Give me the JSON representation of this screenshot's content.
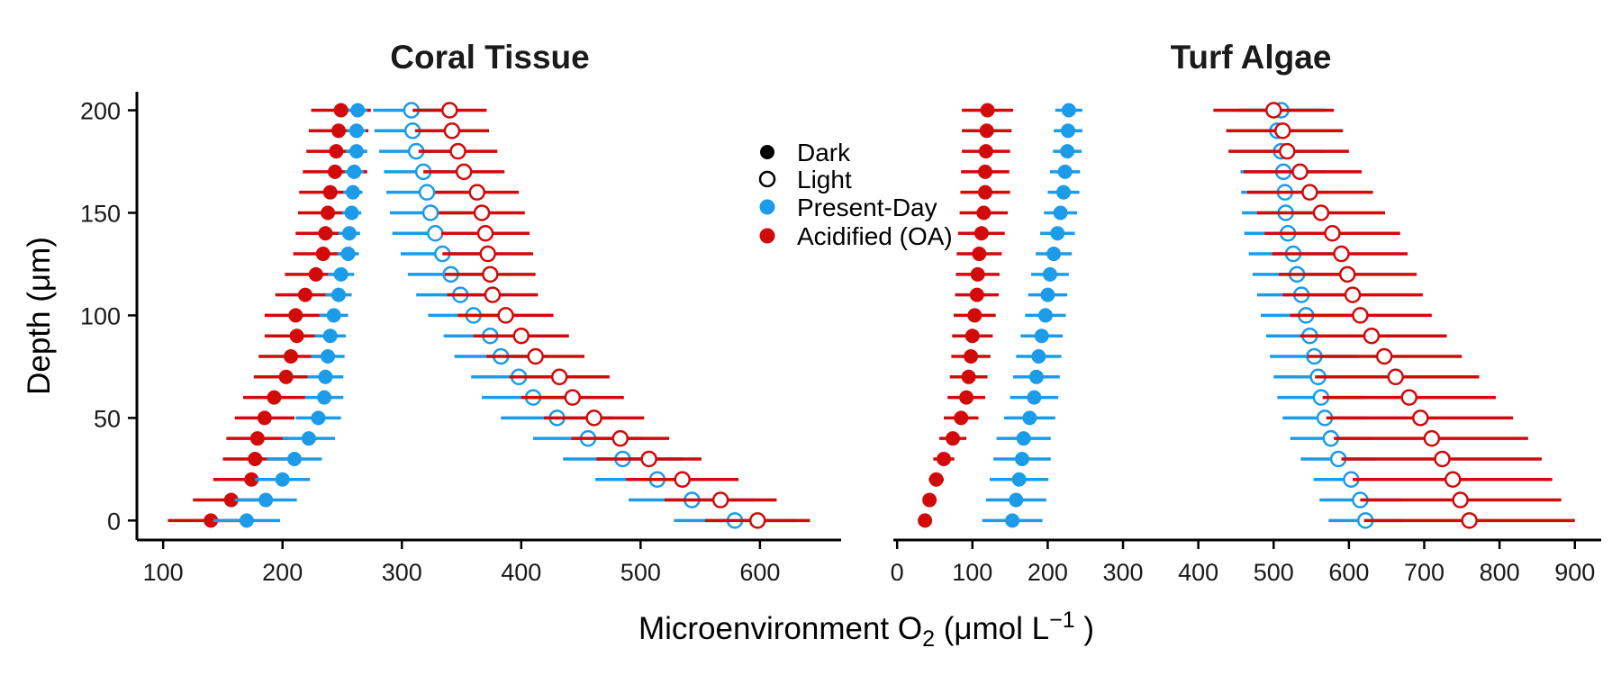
{
  "colors": {
    "present_day": "#1b9be8",
    "acidified": "#d10a0a",
    "axis": "#000000"
  },
  "axes": {
    "y_title": "Depth (μm)",
    "x_title_main": "Microenvironment O",
    "x_title_sub": "2",
    "x_title_unit": " (μmol L",
    "x_title_sup": "−1",
    "x_title_close": " )"
  },
  "legend": {
    "items": [
      {
        "label": "Dark",
        "marker": "filled-circle",
        "color": "#000000"
      },
      {
        "label": "Light",
        "marker": "open-circle",
        "color": "#000000"
      },
      {
        "label": "Present-Day",
        "marker": "filled-circle",
        "color": "#1b9be8"
      },
      {
        "label": "Acidified (OA)",
        "marker": "filled-circle",
        "color": "#d10a0a"
      }
    ]
  },
  "chart_data": [
    {
      "type": "scatter",
      "title": "Coral Tissue",
      "xlabel": "Microenvironment O2 (μmol L−1 )",
      "ylabel": "Depth (μm)",
      "xlim": [
        78,
        668
      ],
      "ylim": [
        -9.5,
        209
      ],
      "xticks": [
        100,
        200,
        300,
        400,
        500,
        600
      ],
      "yticks": [
        0,
        50,
        100,
        150,
        200
      ],
      "depths": [
        0,
        10,
        20,
        30,
        40,
        50,
        60,
        70,
        80,
        90,
        100,
        110,
        120,
        130,
        140,
        150,
        160,
        170,
        180,
        190,
        200
      ],
      "series": [
        {
          "name": "Acidified (OA)",
          "condition": "Dark",
          "mean": [
            140,
            157,
            174,
            177,
            179,
            185,
            193,
            203,
            207,
            212,
            211,
            219,
            228,
            234,
            236,
            238,
            240,
            244,
            245,
            247,
            249
          ],
          "lower": [
            104,
            125,
            142,
            150,
            153,
            160,
            167,
            176,
            180,
            185,
            185,
            194,
            202,
            209,
            211,
            213,
            214,
            217,
            220,
            222,
            224
          ],
          "upper": [
            176,
            189,
            206,
            204,
            205,
            210,
            219,
            230,
            234,
            239,
            237,
            244,
            254,
            259,
            261,
            263,
            266,
            271,
            270,
            272,
            274
          ]
        },
        {
          "name": "Present-Day",
          "condition": "Dark",
          "mean": [
            170,
            186,
            200,
            210,
            222,
            230,
            235,
            236,
            238,
            240,
            243,
            247,
            249,
            255,
            256,
            258,
            259,
            260,
            262,
            262,
            263
          ],
          "lower": [
            142,
            160,
            177,
            187,
            200,
            211,
            219,
            221,
            224,
            227,
            231,
            236,
            238,
            246,
            247,
            250,
            251,
            252,
            253,
            254,
            255
          ],
          "upper": [
            198,
            212,
            223,
            233,
            244,
            249,
            251,
            251,
            252,
            253,
            255,
            258,
            260,
            264,
            265,
            266,
            267,
            268,
            271,
            270,
            271
          ]
        },
        {
          "name": "Present-Day",
          "condition": "Light",
          "mean": [
            579,
            543,
            514,
            485,
            456,
            430,
            410,
            398,
            383,
            374,
            360,
            349,
            341,
            334,
            328,
            324,
            321,
            318,
            312,
            309,
            308
          ],
          "lower": [
            528,
            490,
            462,
            435,
            410,
            383,
            367,
            358,
            344,
            335,
            322,
            312,
            305,
            299,
            292,
            290,
            287,
            285,
            281,
            277,
            276
          ],
          "upper": [
            630,
            596,
            566,
            535,
            502,
            477,
            453,
            438,
            422,
            413,
            398,
            386,
            377,
            369,
            364,
            358,
            355,
            351,
            343,
            341,
            340
          ]
        },
        {
          "name": "Acidified (OA)",
          "condition": "Light",
          "mean": [
            598,
            567,
            535,
            507,
            483,
            461,
            443,
            432,
            412,
            400,
            387,
            376,
            374,
            372,
            370,
            367,
            363,
            352,
            347,
            342,
            340
          ],
          "lower": [
            554,
            520,
            488,
            463,
            442,
            419,
            400,
            390,
            371,
            360,
            347,
            338,
            336,
            334,
            333,
            331,
            328,
            318,
            314,
            311,
            309
          ],
          "upper": [
            642,
            614,
            582,
            551,
            524,
            503,
            486,
            474,
            453,
            440,
            427,
            414,
            412,
            410,
            407,
            403,
            398,
            386,
            380,
            373,
            371
          ]
        }
      ]
    },
    {
      "type": "scatter",
      "title": "Turf Algae",
      "xlabel": "Microenvironment O2 (μmol L−1 )",
      "ylabel": "Depth (μm)",
      "xlim": [
        -5,
        935
      ],
      "ylim": [
        -9.5,
        209
      ],
      "xticks": [
        0,
        100,
        200,
        300,
        400,
        500,
        600,
        700,
        800,
        900
      ],
      "yticks": [
        0,
        50,
        100,
        150,
        200
      ],
      "depths": [
        0,
        10,
        20,
        30,
        40,
        50,
        60,
        70,
        80,
        90,
        100,
        110,
        120,
        130,
        140,
        150,
        160,
        170,
        180,
        190,
        200
      ],
      "series": [
        {
          "name": "Acidified (OA)",
          "condition": "Dark",
          "mean": [
            37,
            43,
            52,
            62,
            74,
            85,
            92,
            95,
            98,
            100,
            103,
            106,
            107,
            109,
            112,
            115,
            117,
            117,
            118,
            119,
            120
          ],
          "lower": [
            29,
            35,
            42,
            48,
            56,
            62,
            67,
            70,
            72,
            73,
            75,
            77,
            78,
            79,
            81,
            83,
            84,
            85,
            86,
            86,
            86
          ],
          "upper": [
            45,
            51,
            62,
            76,
            92,
            108,
            117,
            120,
            124,
            127,
            131,
            135,
            136,
            139,
            143,
            147,
            150,
            149,
            150,
            152,
            154
          ]
        },
        {
          "name": "Present-Day",
          "condition": "Dark",
          "mean": [
            153,
            158,
            162,
            166,
            168,
            176,
            182,
            185,
            188,
            192,
            197,
            200,
            203,
            208,
            213,
            217,
            221,
            223,
            226,
            227,
            228
          ],
          "lower": [
            113,
            118,
            123,
            128,
            132,
            142,
            150,
            154,
            158,
            164,
            170,
            174,
            178,
            184,
            190,
            195,
            200,
            203,
            207,
            208,
            210
          ],
          "upper": [
            193,
            198,
            201,
            204,
            204,
            210,
            214,
            216,
            218,
            220,
            224,
            226,
            228,
            232,
            236,
            239,
            242,
            243,
            245,
            246,
            246
          ]
        },
        {
          "name": "Present-Day",
          "condition": "Light",
          "mean": [
            622,
            615,
            603,
            586,
            576,
            568,
            563,
            559,
            554,
            548,
            543,
            537,
            531,
            526,
            519,
            516,
            515,
            513,
            510,
            505,
            510
          ],
          "lower": [
            573,
            561,
            553,
            536,
            522,
            512,
            505,
            500,
            495,
            490,
            483,
            478,
            472,
            467,
            461,
            458,
            457,
            456,
            453,
            447,
            452
          ],
          "upper": [
            671,
            669,
            653,
            636,
            630,
            624,
            621,
            618,
            613,
            606,
            603,
            596,
            590,
            585,
            577,
            574,
            573,
            570,
            567,
            563,
            568
          ]
        },
        {
          "name": "Acidified (OA)",
          "condition": "Light",
          "mean": [
            760,
            748,
            738,
            724,
            710,
            695,
            680,
            662,
            647,
            630,
            615,
            605,
            598,
            590,
            578,
            563,
            548,
            535,
            518,
            512,
            500
          ],
          "lower": [
            620,
            615,
            605,
            590,
            580,
            570,
            565,
            555,
            545,
            535,
            522,
            512,
            507,
            498,
            488,
            478,
            465,
            460,
            440,
            437,
            420
          ],
          "upper": [
            900,
            882,
            870,
            856,
            838,
            818,
            795,
            773,
            750,
            730,
            710,
            698,
            690,
            678,
            668,
            648,
            632,
            617,
            600,
            592,
            580
          ]
        }
      ]
    }
  ]
}
